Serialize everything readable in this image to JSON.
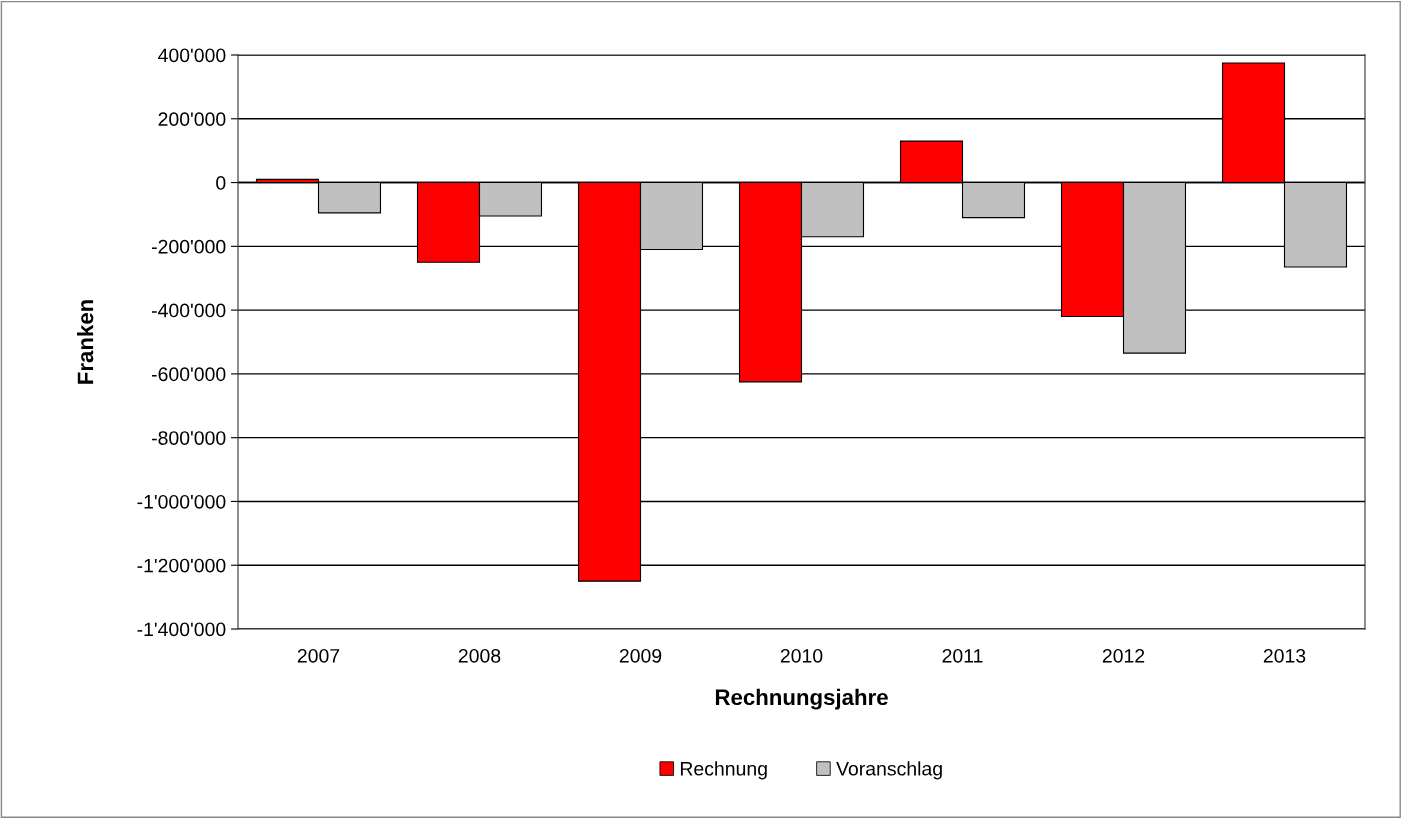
{
  "chart_data": {
    "type": "bar",
    "xlabel": "Rechnungsjahre",
    "ylabel": "Franken",
    "categories": [
      "2007",
      "2008",
      "2009",
      "2010",
      "2011",
      "2012",
      "2013"
    ],
    "series": [
      {
        "name": "Rechnung",
        "color": "#ff0000",
        "values": [
          10000,
          -250000,
          -1250000,
          -625000,
          130000,
          -420000,
          375000
        ]
      },
      {
        "name": "Voranschlag",
        "color": "#c0c0c0",
        "values": [
          -95000,
          -105000,
          -210000,
          -170000,
          -110000,
          -535000,
          -265000
        ]
      }
    ],
    "ylim": [
      -1400000,
      400000
    ],
    "yticks": [
      {
        "value": -1400000,
        "label": "-1'400'000"
      },
      {
        "value": -1200000,
        "label": "-1'200'000"
      },
      {
        "value": -1000000,
        "label": "-1'000'000"
      },
      {
        "value": -800000,
        "label": "-800'000"
      },
      {
        "value": -600000,
        "label": "-600'000"
      },
      {
        "value": -400000,
        "label": "-400'000"
      },
      {
        "value": -200000,
        "label": "-200'000"
      },
      0,
      {
        "value": 200000,
        "label": "200'000"
      },
      {
        "value": 400000,
        "label": "400'000"
      }
    ],
    "grid": "y",
    "legend": "bottom"
  }
}
